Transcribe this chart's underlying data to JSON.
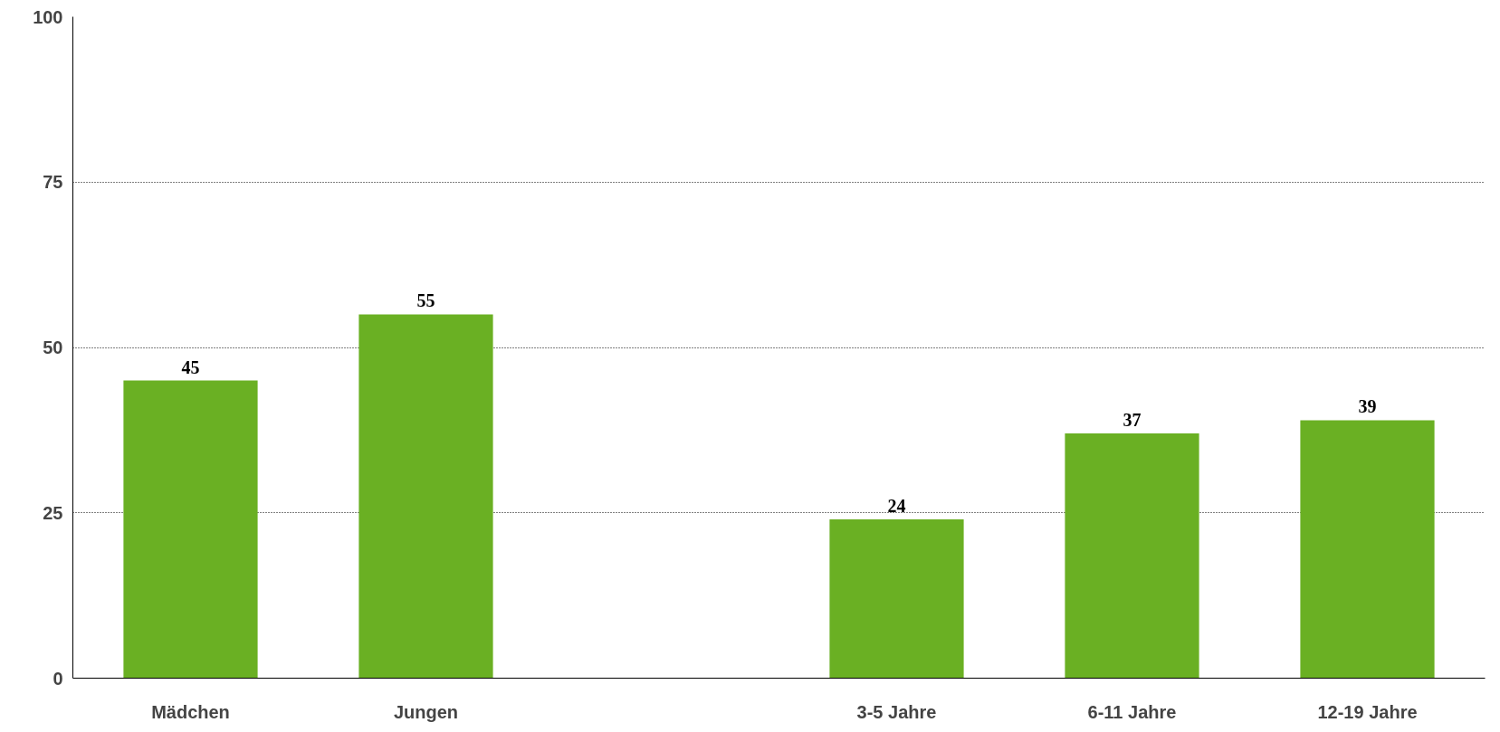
{
  "chart_data": {
    "type": "bar",
    "categories": [
      "Mädchen",
      "Jungen",
      null,
      "3-5 Jahre",
      "6-11 Jahre",
      "12-19 Jahre"
    ],
    "values": [
      45,
      55,
      null,
      24,
      37,
      39
    ],
    "color": "#6ab023",
    "ylim": [
      0,
      100
    ],
    "yticks": [
      0,
      25,
      50,
      75,
      100
    ],
    "grid": "y",
    "data_labels": true
  }
}
